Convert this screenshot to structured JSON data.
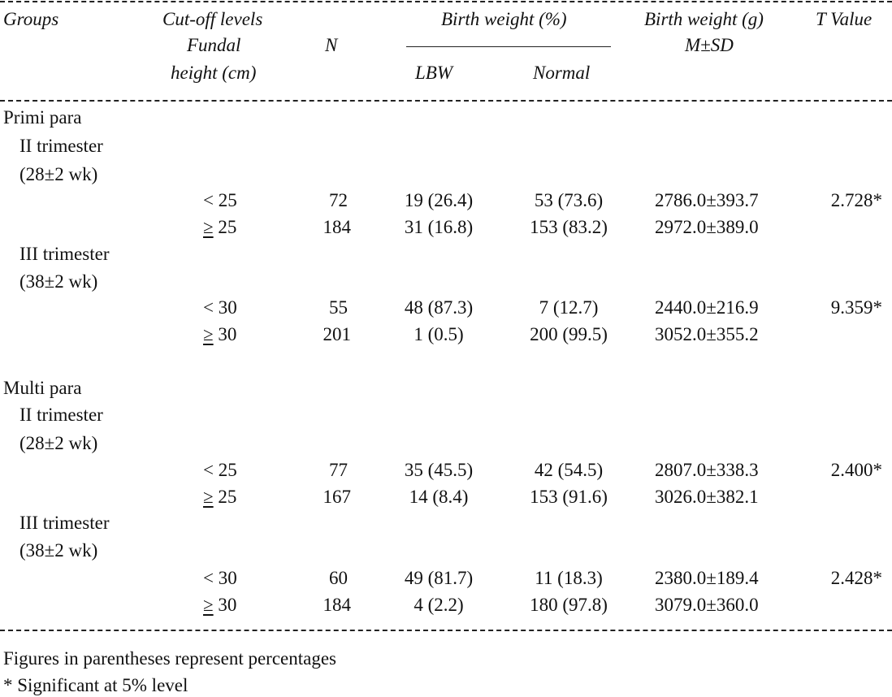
{
  "headers": {
    "groups": "Groups",
    "cutoff_l1": "Cut-off levels",
    "cutoff_l2": "Fundal",
    "cutoff_l3": "height (cm)",
    "n": "N",
    "bw_pct": "Birth weight (%)",
    "lbw": "LBW",
    "normal": "Normal",
    "bw_g": "Birth weight (g)",
    "msd": "M±SD",
    "t_value": "T Value"
  },
  "groups": {
    "primi": "Primi para",
    "multi": "Multi para"
  },
  "trimesters": {
    "ii": "II trimester",
    "ii_wk": "(28±2 wk)",
    "iii": "III trimester",
    "iii_wk": "(38±2 wk)"
  },
  "rows": [
    {
      "cutoff": "< 25",
      "n": "72",
      "lbw": "19 (26.4)",
      "normal": "53 (73.6)",
      "bwg": "2786.0±393.7",
      "t": "2.728*"
    },
    {
      "cutoff_sym": "≥",
      "cutoff": " 25",
      "n": "184",
      "lbw": "31 (16.8)",
      "normal": "153 (83.2)",
      "bwg": "2972.0±389.0",
      "t": ""
    },
    {
      "cutoff": "< 30",
      "n": "55",
      "lbw": "48 (87.3)",
      "normal": "7 (12.7)",
      "bwg": "2440.0±216.9",
      "t": "9.359*"
    },
    {
      "cutoff_sym": "≥",
      "cutoff": " 30",
      "n": "201",
      "lbw": "1 (0.5)",
      "normal": "200 (99.5)",
      "bwg": "3052.0±355.2",
      "t": ""
    },
    {
      "cutoff": "< 25",
      "n": "77",
      "lbw": "35 (45.5)",
      "normal": "42 (54.5)",
      "bwg": "2807.0±338.3",
      "t": "2.400*"
    },
    {
      "cutoff_sym": "≥",
      "cutoff": " 25",
      "n": "167",
      "lbw": "14 (8.4)",
      "normal": "153 (91.6)",
      "bwg": "3026.0±382.1",
      "t": ""
    },
    {
      "cutoff": "< 30",
      "n": "60",
      "lbw": "49 (81.7)",
      "normal": "11 (18.3)",
      "bwg": "2380.0±189.4",
      "t": "2.428*"
    },
    {
      "cutoff_sym": "≥",
      "cutoff": " 30",
      "n": "184",
      "lbw": "4 (2.2)",
      "normal": "180 (97.8)",
      "bwg": "3079.0±360.0",
      "t": ""
    }
  ],
  "footnotes": {
    "percent": "Figures in parentheses represent percentages",
    "significance": "* Significant at 5% level"
  }
}
